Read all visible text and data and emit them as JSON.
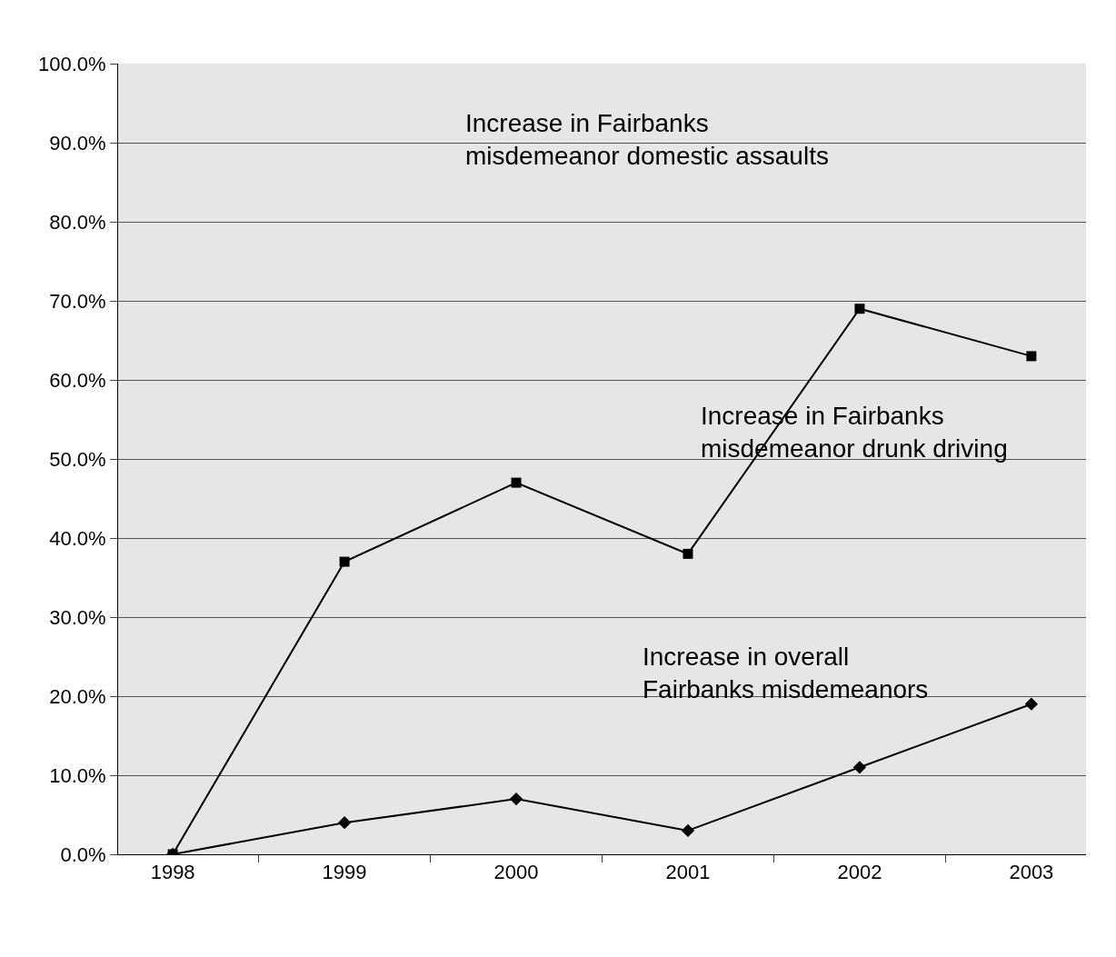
{
  "chart_data": {
    "type": "line",
    "categories": [
      "1998",
      "1999",
      "2000",
      "2001",
      "2002",
      "2003"
    ],
    "series": [
      {
        "name": "Increase in Fairbanks misdemeanor drunk driving",
        "color": "#000000",
        "marker": "square",
        "values": [
          0,
          37,
          47,
          38,
          69,
          63
        ]
      },
      {
        "name": "Increase in overall Fairbanks misdemeanors",
        "color": "#000000",
        "marker": "diamond",
        "values": [
          0,
          4,
          7,
          3,
          11,
          19
        ]
      }
    ],
    "annotations": [
      "Increase in Fairbanks misdemeanor domestic assaults"
    ],
    "ylim": [
      0,
      100
    ],
    "yticks": [
      {
        "value": 0,
        "label": "0.0%"
      },
      {
        "value": 10,
        "label": "10.0%"
      },
      {
        "value": 20,
        "label": "20.0%"
      },
      {
        "value": 30,
        "label": "30.0%"
      },
      {
        "value": 40,
        "label": "40.0%"
      },
      {
        "value": 50,
        "label": "50.0%"
      },
      {
        "value": 60,
        "label": "60.0%"
      },
      {
        "value": 70,
        "label": "70.0%"
      },
      {
        "value": 80,
        "label": "80.0%"
      },
      {
        "value": 90,
        "label": "90.0%"
      },
      {
        "value": 100,
        "label": "100.0%"
      }
    ],
    "grid": "y",
    "legend": false,
    "line_style": "solid"
  }
}
